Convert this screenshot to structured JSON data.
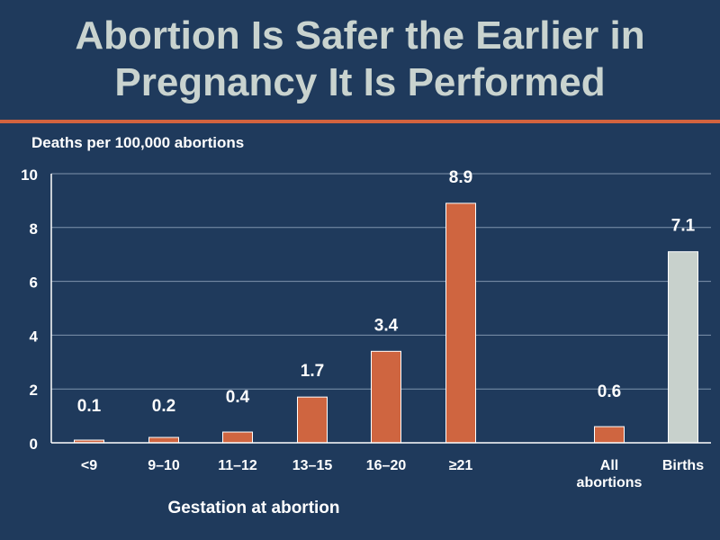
{
  "title_line1": "Abortion Is Safer the Earlier in",
  "title_line2": "Pregnancy It Is Performed",
  "colors": {
    "background": "#1f3a5c",
    "accent": "#d2633f",
    "bar": "#cf6540",
    "bar_alt": "#c8d1cc",
    "title": "#c9d3cf",
    "text": "#ffffff",
    "grid": "#7f94ad"
  },
  "chart_data": {
    "type": "bar",
    "ylabel": "Deaths per 100,000 abortions",
    "xlabel": "Gestation at abortion",
    "ylim": [
      0,
      10
    ],
    "yticks": [
      "0",
      "2",
      "4",
      "6",
      "8",
      "10"
    ],
    "categories": [
      "<9",
      "9–10",
      "11–12",
      "13–15",
      "16–20",
      "≥21",
      "All abortions",
      "Births"
    ],
    "category_lines": [
      [
        "<9"
      ],
      [
        "9–10"
      ],
      [
        "11–12"
      ],
      [
        "13–15"
      ],
      [
        "16–20"
      ],
      [
        "≥21"
      ],
      [
        "All",
        "abortions"
      ],
      [
        "Births"
      ]
    ],
    "values": [
      0.1,
      0.2,
      0.4,
      1.7,
      3.4,
      8.9,
      0.6,
      7.1
    ],
    "value_labels": [
      "0.1",
      "0.2",
      "0.4",
      "1.7",
      "3.4",
      "8.9",
      "0.6",
      "7.1"
    ],
    "highlight_index": 7,
    "grid": true
  }
}
